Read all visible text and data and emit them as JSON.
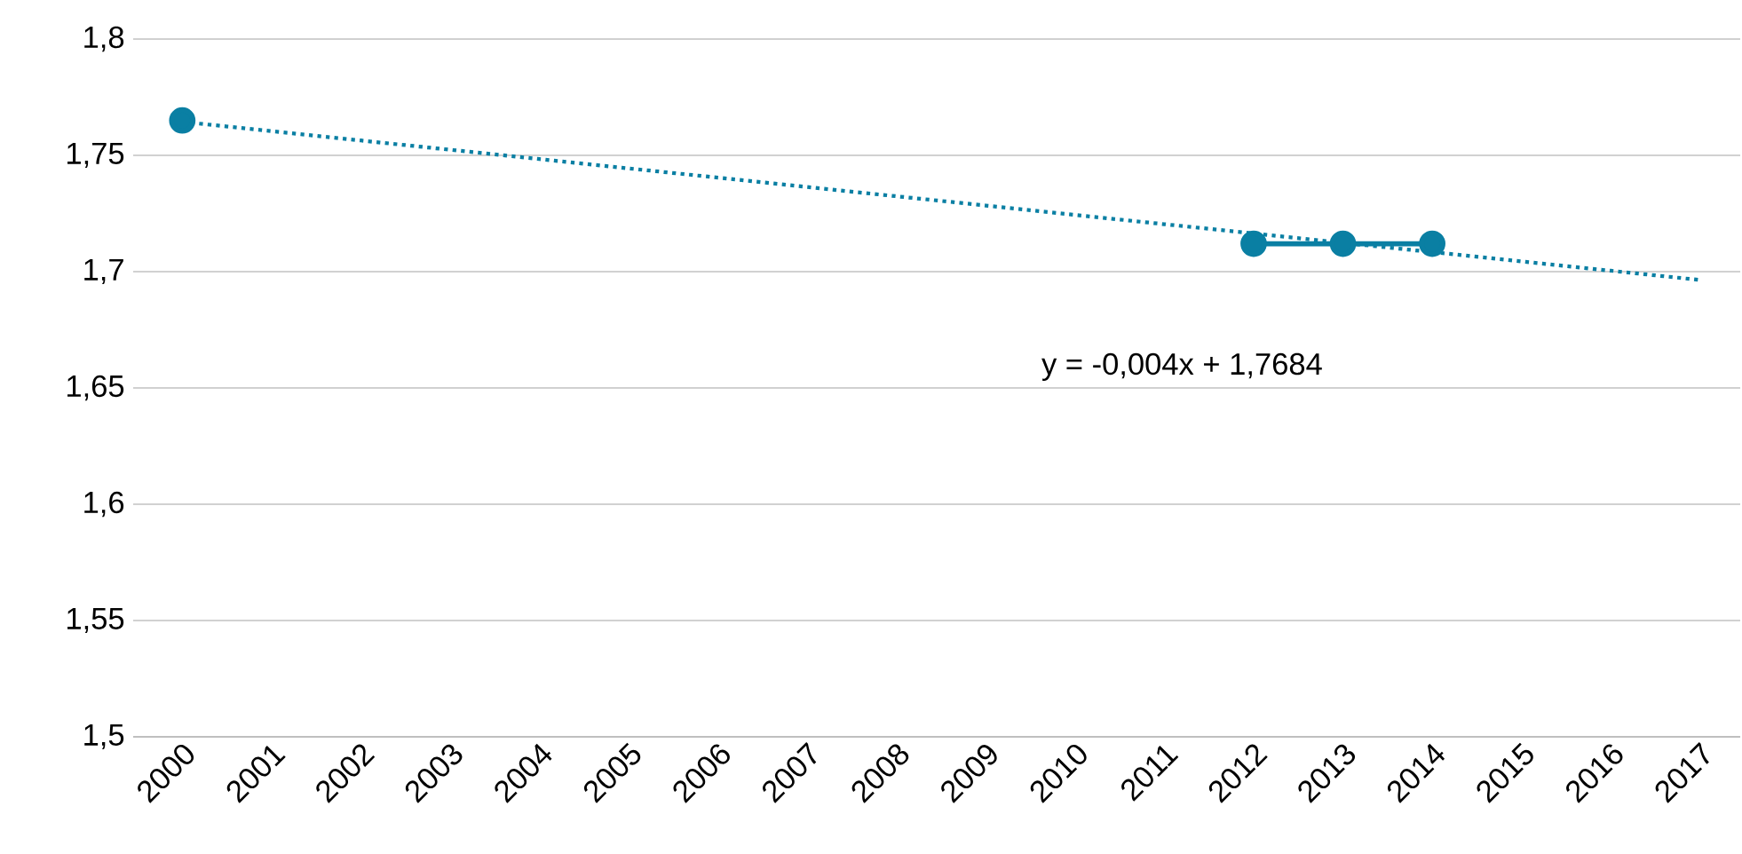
{
  "chart_data": {
    "type": "line",
    "categories": [
      "2000",
      "2001",
      "2002",
      "2003",
      "2004",
      "2005",
      "2006",
      "2007",
      "2008",
      "2009",
      "2010",
      "2011",
      "2012",
      "2013",
      "2014",
      "2015",
      "2016",
      "2017"
    ],
    "series": [
      {
        "color": "#0a7fa3",
        "marker": "none",
        "line_style": "dotted",
        "values": [
          1.7644,
          1.7604,
          1.7564,
          1.7524,
          1.7484,
          1.7444,
          1.7404,
          1.7364,
          1.7324,
          1.7284,
          1.7244,
          1.7204,
          1.7164,
          1.7124,
          1.7084,
          1.7044,
          1.7004,
          1.6964
        ]
      },
      {
        "color": "#0a7fa3",
        "marker": "circle",
        "line_style": "solid",
        "values": [
          1.765,
          null,
          null,
          null,
          null,
          null,
          null,
          null,
          null,
          null,
          null,
          null,
          1.712,
          1.712,
          1.712,
          null,
          null,
          null
        ]
      }
    ],
    "ylim": [
      1.5,
      1.8
    ],
    "yticks": [
      {
        "value": 1.5,
        "label": "1,5"
      },
      {
        "value": 1.55,
        "label": "1,55"
      },
      {
        "value": 1.6,
        "label": "1,6"
      },
      {
        "value": 1.65,
        "label": "1,65"
      },
      {
        "value": 1.7,
        "label": "1,7"
      },
      {
        "value": 1.75,
        "label": "1,75"
      },
      {
        "value": 1.8,
        "label": "1,8"
      }
    ],
    "grid": "y",
    "annotations": [
      "y = -0,004x + 1,7684"
    ]
  }
}
